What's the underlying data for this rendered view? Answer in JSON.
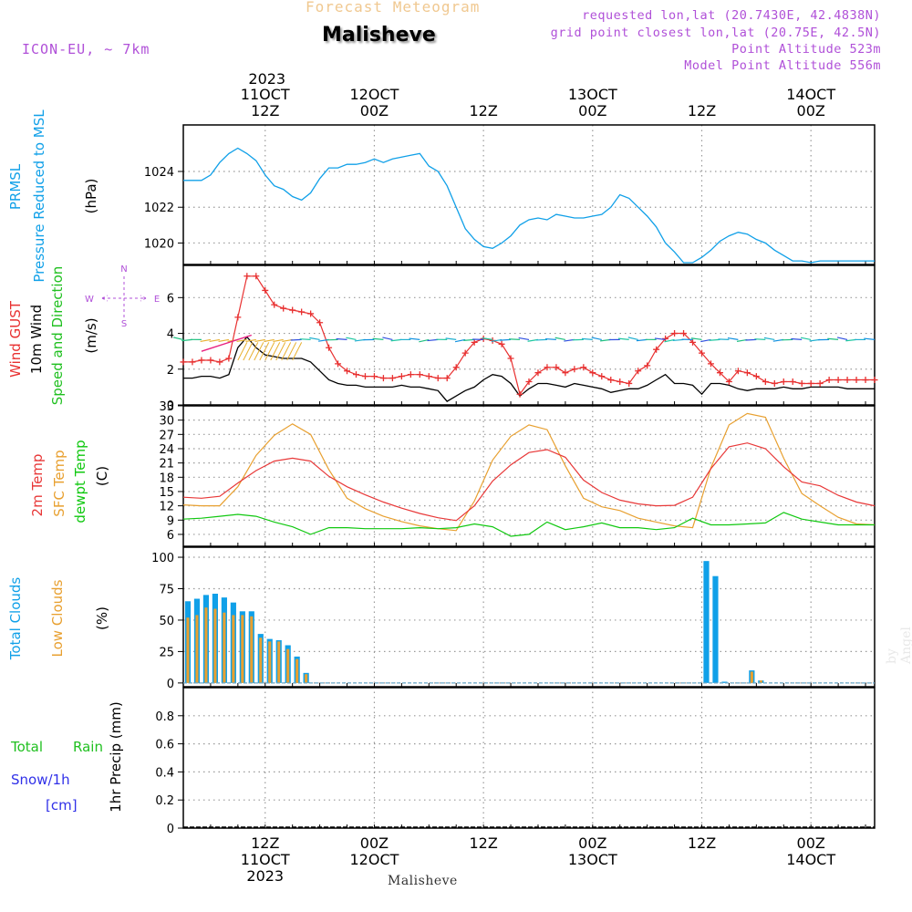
{
  "header": {
    "top_title": "Forecast Meteogram",
    "location": "Malisheve",
    "model": "ICON-EU, ~ 7km",
    "requested": "requested lon,lat (20.7430E, 42.4838N)",
    "grid_point": "grid point closest lon,lat (20.75E, 42.5N)",
    "altitude": "Point Altitude 523m",
    "model_altitude": "Model Point Altitude 556m",
    "credit": "by Angel",
    "footer_location": "Malisheve"
  },
  "colors": {
    "title": "#f0c890",
    "info": "#b050d8",
    "pressure": "#10a0e8",
    "gust": "#e83030",
    "wind": "#000000",
    "wind_label_green": "#20c020",
    "temp2m": "#e83838",
    "sfc_temp": "#e8a030",
    "dewpt": "#10c810",
    "total_clouds": "#10a0e8",
    "low_clouds": "#e8a030",
    "rain": "#20c020",
    "snow": "#3030e8"
  },
  "time_axis": {
    "top_year": "2023",
    "major_ticks": [
      {
        "top": [
          "11OCT",
          "12Z"
        ],
        "bottom": [
          "12Z",
          "11OCT",
          "2023"
        ],
        "hours_from_start": 9
      },
      {
        "top": [
          "12OCT",
          "00Z"
        ],
        "bottom": [
          "00Z",
          "12OCT"
        ],
        "hours_from_start": 21
      },
      {
        "top": [
          "12Z"
        ],
        "bottom": [
          "12Z"
        ],
        "hours_from_start": 33
      },
      {
        "top": [
          "13OCT",
          "00Z"
        ],
        "bottom": [
          "00Z",
          "13OCT"
        ],
        "hours_from_start": 45
      },
      {
        "top": [
          "12Z"
        ],
        "bottom": [
          "12Z"
        ],
        "hours_from_start": 57
      },
      {
        "top": [
          "14OCT",
          "00Z"
        ],
        "bottom": [
          "00Z",
          "14OCT"
        ],
        "hours_from_start": 69
      }
    ],
    "start": "11OCT2023 03Z",
    "end_hours": 76
  },
  "chart_data": [
    {
      "type": "line",
      "id": "pressure",
      "labels": [
        "PRMSL",
        "Pressure Reduced to MSL",
        "(hPa)"
      ],
      "ylim": [
        1018.8,
        1026.6
      ],
      "yticks": [
        1020,
        1022,
        1024
      ],
      "grid": true,
      "series": [
        {
          "name": "PRMSL",
          "x": [
            0,
            1,
            2,
            3,
            4,
            5,
            6,
            7,
            8,
            9,
            10,
            11,
            12,
            13,
            14,
            15,
            16,
            17,
            18,
            19,
            20,
            21,
            22,
            23,
            24,
            25,
            26,
            27,
            28,
            29,
            30,
            31,
            32,
            33,
            34,
            35,
            36,
            37,
            38,
            39,
            40,
            41,
            42,
            43,
            44,
            45,
            46,
            47,
            48,
            49,
            50,
            51,
            52,
            53,
            54,
            55,
            56,
            57,
            58,
            59,
            60,
            61,
            62,
            63,
            64,
            65,
            66,
            67,
            68,
            69,
            70,
            71,
            72,
            73,
            74,
            75,
            76
          ],
          "y": [
            1023.5,
            1023.5,
            1023.5,
            1023.8,
            1024.5,
            1025.0,
            1025.3,
            1025.0,
            1024.6,
            1023.8,
            1023.2,
            1023.0,
            1022.6,
            1022.4,
            1022.8,
            1023.6,
            1024.2,
            1024.2,
            1024.4,
            1024.4,
            1024.5,
            1024.7,
            1024.5,
            1024.7,
            1024.8,
            1024.9,
            1025.0,
            1024.3,
            1024.0,
            1023.2,
            1022.0,
            1020.8,
            1020.2,
            1019.8,
            1019.7,
            1020.0,
            1020.4,
            1021.0,
            1021.3,
            1021.4,
            1021.3,
            1021.6,
            1021.5,
            1021.4,
            1021.4,
            1021.5,
            1021.6,
            1022.0,
            1022.7,
            1022.5,
            1022.0,
            1021.5,
            1020.9,
            1020.0,
            1019.5,
            1018.9,
            1018.9,
            1019.2,
            1019.6,
            1020.1,
            1020.4,
            1020.6,
            1020.5,
            1020.2,
            1020.0,
            1019.6,
            1019.3,
            1019.0,
            1019.0,
            1018.9,
            1019.0,
            1019.0,
            1019.0,
            1019.0,
            1019.0,
            1019.0,
            1019.0
          ]
        }
      ]
    },
    {
      "type": "line",
      "id": "wind",
      "labels": [
        "Wind GUST",
        "10m Wind",
        "Speed and Direction",
        "(m/s)"
      ],
      "compass": {
        "n": "N",
        "s": "S",
        "e": "E",
        "w": "W"
      },
      "ylim": [
        0,
        7.8
      ],
      "yticks": [
        0,
        2,
        4,
        6
      ],
      "grid": true,
      "series": [
        {
          "name": "Wind GUST",
          "x": [
            0,
            1,
            2,
            3,
            4,
            5,
            6,
            7,
            8,
            9,
            10,
            11,
            12,
            13,
            14,
            15,
            16,
            17,
            18,
            19,
            20,
            21,
            22,
            23,
            24,
            25,
            26,
            27,
            28,
            29,
            30,
            31,
            32,
            33,
            34,
            35,
            36,
            37,
            38,
            39,
            40,
            41,
            42,
            43,
            44,
            45,
            46,
            47,
            48,
            49,
            50,
            51,
            52,
            53,
            54,
            55,
            56,
            57,
            58,
            59,
            60,
            61,
            62,
            63,
            64,
            65,
            66,
            67,
            68,
            69,
            70,
            71,
            72,
            73,
            74,
            75,
            76
          ],
          "y": [
            2.4,
            2.4,
            2.5,
            2.5,
            2.4,
            2.6,
            4.9,
            7.2,
            7.2,
            6.4,
            5.6,
            5.4,
            5.3,
            5.2,
            5.1,
            4.6,
            3.2,
            2.3,
            1.9,
            1.7,
            1.6,
            1.6,
            1.5,
            1.5,
            1.6,
            1.7,
            1.7,
            1.6,
            1.5,
            1.5,
            2.1,
            2.9,
            3.5,
            3.7,
            3.6,
            3.4,
            2.6,
            0.6,
            1.3,
            1.8,
            2.1,
            2.1,
            1.8,
            2.0,
            2.1,
            1.8,
            1.6,
            1.4,
            1.3,
            1.2,
            1.9,
            2.2,
            3.1,
            3.7,
            4.0,
            4.0,
            3.5,
            2.9,
            2.3,
            1.8,
            1.3,
            1.9,
            1.8,
            1.6,
            1.3,
            1.2,
            1.3,
            1.3,
            1.2,
            1.2,
            1.2,
            1.4,
            1.4,
            1.4,
            1.4,
            1.4,
            1.4
          ]
        },
        {
          "name": "10m Wind",
          "x": [
            0,
            1,
            2,
            3,
            4,
            5,
            6,
            7,
            8,
            9,
            10,
            11,
            12,
            13,
            14,
            15,
            16,
            17,
            18,
            19,
            20,
            21,
            22,
            23,
            24,
            25,
            26,
            27,
            28,
            29,
            30,
            31,
            32,
            33,
            34,
            35,
            36,
            37,
            38,
            39,
            40,
            41,
            42,
            43,
            44,
            45,
            46,
            47,
            48,
            49,
            50,
            51,
            52,
            53,
            54,
            55,
            56,
            57,
            58,
            59,
            60,
            61,
            62,
            63,
            64,
            65,
            66,
            67,
            68,
            69,
            70,
            71,
            72,
            73,
            74,
            75,
            76
          ],
          "y": [
            1.5,
            1.5,
            1.6,
            1.6,
            1.5,
            1.7,
            3.2,
            3.8,
            3.2,
            2.8,
            2.7,
            2.6,
            2.6,
            2.6,
            2.4,
            1.9,
            1.4,
            1.2,
            1.1,
            1.1,
            1.0,
            1.0,
            1.0,
            1.0,
            1.1,
            1.0,
            1.0,
            0.9,
            0.8,
            0.2,
            0.5,
            0.8,
            1.0,
            1.4,
            1.7,
            1.6,
            1.2,
            0.5,
            0.9,
            1.2,
            1.2,
            1.1,
            1.0,
            1.2,
            1.1,
            1.0,
            0.9,
            0.7,
            0.8,
            0.9,
            0.9,
            1.1,
            1.4,
            1.7,
            1.2,
            1.2,
            1.1,
            0.6,
            1.2,
            1.2,
            1.1,
            0.9,
            0.8,
            0.9,
            0.9,
            0.9,
            1.0,
            0.9,
            0.9,
            1.0,
            1.0,
            1.0,
            1.0,
            0.9,
            0.9,
            0.9,
            0.9
          ]
        }
      ]
    },
    {
      "type": "line",
      "id": "temperature",
      "labels": [
        "2m Temp",
        "SFC Temp",
        "dewpt Temp",
        "(C)"
      ],
      "ylim": [
        3.5,
        33
      ],
      "yticks": [
        6,
        9,
        12,
        15,
        18,
        21,
        24,
        27,
        30,
        33
      ],
      "grid": true,
      "series": [
        {
          "name": "2m Temp",
          "x": [
            0,
            2,
            4,
            6,
            8,
            10,
            12,
            14,
            16,
            18,
            20,
            22,
            24,
            26,
            28,
            30,
            32,
            34,
            36,
            38,
            40,
            42,
            44,
            46,
            48,
            50,
            52,
            54,
            56,
            58,
            60,
            62,
            64,
            66,
            68,
            70,
            72,
            74,
            76
          ],
          "y": [
            13.8,
            13.6,
            14.0,
            16.8,
            19.4,
            21.4,
            22.0,
            21.4,
            18.2,
            16.0,
            14.3,
            12.8,
            11.5,
            10.4,
            9.5,
            8.9,
            12.0,
            17.2,
            20.6,
            23.2,
            23.8,
            22.2,
            17.4,
            14.8,
            13.2,
            12.4,
            12.0,
            12.1,
            13.8,
            19.8,
            24.4,
            25.2,
            24.0,
            20.2,
            17.0,
            16.2,
            14.2,
            12.8,
            12.0
          ]
        },
        {
          "name": "SFC Temp",
          "x": [
            0,
            2,
            4,
            6,
            8,
            10,
            12,
            14,
            16,
            18,
            20,
            22,
            24,
            26,
            28,
            30,
            32,
            34,
            36,
            38,
            40,
            42,
            44,
            46,
            48,
            50,
            52,
            54,
            56,
            58,
            60,
            62,
            64,
            66,
            68,
            70,
            72,
            74,
            76
          ],
          "y": [
            12.2,
            12.0,
            12.0,
            16.0,
            22.6,
            26.8,
            29.2,
            27.0,
            19.6,
            13.6,
            11.4,
            9.8,
            8.7,
            7.8,
            7.2,
            6.8,
            13.0,
            21.6,
            26.6,
            29.0,
            28.0,
            20.4,
            13.6,
            11.8,
            11.0,
            9.4,
            8.6,
            7.8,
            7.4,
            20.0,
            29.0,
            31.4,
            30.6,
            22.0,
            14.6,
            12.0,
            9.6,
            8.2,
            8.0
          ]
        },
        {
          "name": "dewpt Temp",
          "x": [
            0,
            2,
            4,
            6,
            8,
            10,
            12,
            14,
            16,
            18,
            20,
            22,
            24,
            26,
            28,
            30,
            32,
            34,
            36,
            38,
            40,
            42,
            44,
            46,
            48,
            50,
            52,
            54,
            56,
            58,
            60,
            62,
            64,
            66,
            68,
            70,
            72,
            74,
            76
          ],
          "y": [
            9.2,
            9.4,
            9.8,
            10.2,
            9.8,
            8.6,
            7.6,
            6.0,
            7.4,
            7.4,
            7.2,
            7.2,
            7.2,
            7.4,
            7.2,
            7.4,
            8.2,
            7.6,
            5.6,
            6.0,
            8.6,
            7.0,
            7.6,
            8.4,
            7.4,
            7.4,
            7.0,
            7.4,
            9.4,
            8.0,
            8.0,
            8.2,
            8.4,
            10.6,
            9.2,
            8.6,
            8.0,
            8.0,
            8.0
          ]
        }
      ]
    },
    {
      "type": "bar",
      "id": "clouds",
      "labels": [
        "Total Clouds",
        "Low Clouds",
        "(%)"
      ],
      "ylim": [
        -3,
        108
      ],
      "yticks": [
        0,
        25,
        50,
        75,
        100
      ],
      "grid": true,
      "x": [
        0,
        1,
        2,
        3,
        4,
        5,
        6,
        7,
        8,
        9,
        10,
        11,
        12,
        13,
        57,
        58,
        59,
        62,
        63
      ],
      "series": [
        {
          "name": "Total Clouds",
          "values": [
            65,
            67,
            70,
            71,
            68,
            64,
            57,
            57,
            39,
            35,
            34,
            30,
            21,
            8,
            97,
            85,
            1,
            10,
            2
          ]
        },
        {
          "name": "Low Clouds",
          "values": [
            52,
            54,
            60,
            59,
            56,
            54,
            54,
            53,
            36,
            33,
            33,
            27,
            19,
            7,
            0,
            0,
            0,
            9,
            2
          ]
        }
      ]
    },
    {
      "type": "line",
      "id": "precip",
      "labels": [
        "Total",
        "Rain",
        "Snow/1h",
        "[cm]",
        "1hr Precip (mm)"
      ],
      "ylim": [
        0,
        1.0
      ],
      "yticks": [
        0,
        0.2,
        0.4,
        0.6,
        0.8
      ],
      "ytick_labels": [
        "0",
        "0.2",
        "0.4",
        "0.6",
        "0.8"
      ],
      "grid": true,
      "series": []
    }
  ]
}
